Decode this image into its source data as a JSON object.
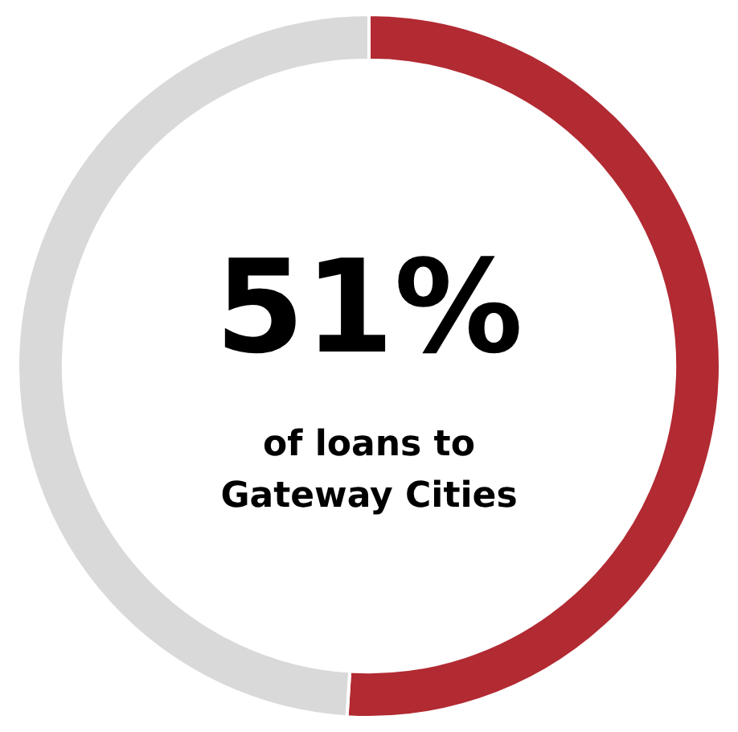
{
  "chart_data": {
    "type": "donut",
    "categories": [
      null,
      null
    ],
    "values": [
      51,
      49
    ],
    "colors": [
      "#b22a32",
      "#d9d9d9"
    ],
    "value_labels": [
      "51%",
      null
    ],
    "annotations": [
      "of loans to Gateway Cities"
    ],
    "legend": false
  }
}
